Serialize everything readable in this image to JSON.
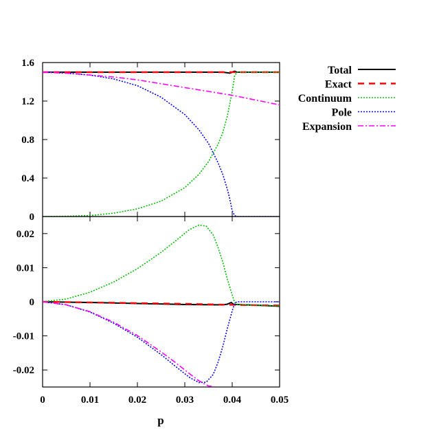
{
  "chart_data": {
    "type": "line",
    "xlabel": "p",
    "xlim": [
      0,
      0.05
    ],
    "x_ticks": [
      "0",
      "0.01",
      "0.02",
      "0.03",
      "0.04",
      "0.05"
    ],
    "x_tick_values": [
      0,
      0.01,
      0.02,
      0.03,
      0.04,
      0.05
    ],
    "legend": {
      "placement": "outside-right-top",
      "entries": [
        {
          "name": "Total",
          "color": "#000000",
          "dash": "solid"
        },
        {
          "name": "Exact",
          "color": "#ff0000",
          "dash": "dashed"
        },
        {
          "name": "Continuum",
          "color": "#00c000",
          "dash": "dotted"
        },
        {
          "name": "Pole",
          "color": "#0000ff",
          "dash": "dotted"
        },
        {
          "name": "Expansion",
          "color": "#ff00ff",
          "dash": "dashdot"
        }
      ]
    },
    "panels": [
      {
        "ylim": [
          0,
          1.6
        ],
        "y_ticks": [
          "0",
          "0.4",
          "0.8",
          "1.2",
          "1.6"
        ],
        "y_tick_values": [
          0,
          0.4,
          0.8,
          1.2,
          1.6
        ],
        "series": [
          {
            "name": "Total",
            "x": [
              0,
              0.01,
              0.02,
              0.03,
              0.038,
              0.0395,
              0.0405,
              0.041,
              0.05
            ],
            "y": [
              1.5,
              1.5,
              1.5,
              1.5,
              1.5,
              1.49,
              1.51,
              1.5,
              1.5
            ]
          },
          {
            "name": "Exact",
            "x": [
              0,
              0.01,
              0.02,
              0.03,
              0.04,
              0.05
            ],
            "y": [
              1.5,
              1.5,
              1.5,
              1.5,
              1.5,
              1.5
            ]
          },
          {
            "name": "Continuum",
            "x": [
              0,
              0.005,
              0.01,
              0.015,
              0.02,
              0.025,
              0.03,
              0.033,
              0.035,
              0.037,
              0.038,
              0.039,
              0.04,
              0.0405,
              0.041,
              0.05
            ],
            "y": [
              0,
              0.003,
              0.01,
              0.035,
              0.08,
              0.16,
              0.3,
              0.44,
              0.57,
              0.75,
              0.87,
              1.05,
              1.3,
              1.46,
              1.5,
              1.5
            ]
          },
          {
            "name": "Pole",
            "x": [
              0,
              0.005,
              0.01,
              0.015,
              0.02,
              0.025,
              0.03,
              0.033,
              0.035,
              0.037,
              0.038,
              0.039,
              0.0395,
              0.04,
              0.0405,
              0.041,
              0.05
            ],
            "y": [
              1.5,
              1.49,
              1.47,
              1.43,
              1.36,
              1.24,
              1.06,
              0.9,
              0.76,
              0.56,
              0.44,
              0.28,
              0.18,
              0.06,
              0.01,
              0,
              0
            ]
          },
          {
            "name": "Expansion",
            "x": [
              0,
              0.005,
              0.01,
              0.015,
              0.02,
              0.025,
              0.03,
              0.035,
              0.04,
              0.045,
              0.05
            ],
            "y": [
              1.5,
              1.49,
              1.47,
              1.45,
              1.42,
              1.38,
              1.34,
              1.3,
              1.26,
              1.21,
              1.16
            ]
          }
        ]
      },
      {
        "ylim": [
          -0.025,
          0.025
        ],
        "y_ticks": [
          "-0.02",
          "-0.01",
          "0",
          "0.01",
          "0.02"
        ],
        "y_tick_values": [
          -0.02,
          -0.01,
          0,
          0.01,
          0.02
        ],
        "series": [
          {
            "name": "Total",
            "x": [
              0,
              0.01,
              0.02,
              0.03,
              0.038,
              0.039,
              0.0398,
              0.0403,
              0.041,
              0.045,
              0.05
            ],
            "y": [
              0,
              -0.0002,
              -0.0005,
              -0.0008,
              -0.0009,
              -0.0007,
              -0.0002,
              -0.0008,
              -0.0008,
              -0.001,
              -0.0013
            ]
          },
          {
            "name": "Exact",
            "x": [
              0,
              0.01,
              0.02,
              0.03,
              0.04,
              0.05
            ],
            "y": [
              0,
              -0.0002,
              -0.0004,
              -0.0006,
              -0.0009,
              -0.0011
            ]
          },
          {
            "name": "Continuum",
            "x": [
              0,
              0.005,
              0.01,
              0.015,
              0.02,
              0.025,
              0.028,
              0.031,
              0.033,
              0.0345,
              0.036,
              0.037,
              0.038,
              0.039,
              0.04,
              0.0405,
              0.041,
              0.045,
              0.05
            ],
            "y": [
              0,
              0.0008,
              0.0028,
              0.0058,
              0.0097,
              0.0145,
              0.0178,
              0.0212,
              0.0225,
              0.0222,
              0.0196,
              0.016,
              0.0117,
              0.0065,
              0.002,
              -0.0002,
              -0.0008,
              -0.001,
              -0.0012
            ]
          },
          {
            "name": "Pole",
            "x": [
              0,
              0.005,
              0.01,
              0.015,
              0.02,
              0.025,
              0.028,
              0.031,
              0.033,
              0.0345,
              0.036,
              0.037,
              0.038,
              0.039,
              0.04,
              0.0405,
              0.041,
              0.045,
              0.05
            ],
            "y": [
              0,
              -0.0009,
              -0.003,
              -0.0063,
              -0.0104,
              -0.0155,
              -0.0189,
              -0.0222,
              -0.0237,
              -0.0236,
              -0.0213,
              -0.0178,
              -0.0132,
              -0.0077,
              -0.0027,
              -0.0005,
              0,
              0,
              0
            ]
          },
          {
            "name": "Expansion",
            "x": [
              0,
              0.005,
              0.01,
              0.015,
              0.02,
              0.025,
              0.028,
              0.031,
              0.033,
              0.035,
              0.0367
            ],
            "y": [
              0,
              -0.0009,
              -0.0029,
              -0.006,
              -0.0099,
              -0.0147,
              -0.0178,
              -0.0211,
              -0.0232,
              -0.0247,
              -0.025
            ]
          }
        ]
      }
    ]
  }
}
